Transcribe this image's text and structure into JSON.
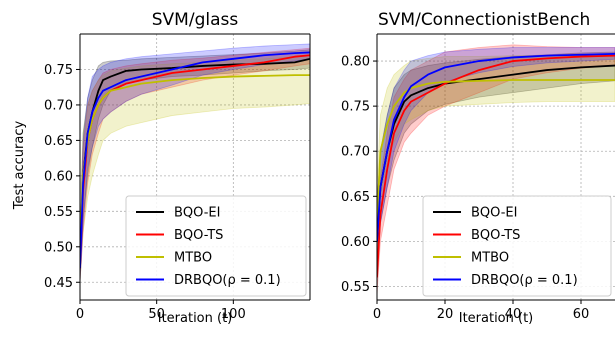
{
  "figure": {
    "ylabel_shared": "Test accuracy"
  },
  "colors": {
    "BQO-EI": "#000000",
    "BQO-TS": "#ff0000",
    "MTBO": "#bfbf00",
    "DRBQO": "#0000ff",
    "grid": "#b0b0b0"
  },
  "chart_data": [
    {
      "type": "line",
      "title": "SVM/glass",
      "xlabel": "Iteration (t)",
      "ylabel": "Test accuracy",
      "xlim": [
        0,
        150
      ],
      "ylim": [
        0.425,
        0.8
      ],
      "xticks": [
        0,
        50,
        100
      ],
      "yticks": [
        0.45,
        0.5,
        0.55,
        0.6,
        0.65,
        0.7,
        0.75
      ],
      "ytick_labels": [
        "0.45",
        "0.50",
        "0.55",
        "0.60",
        "0.65",
        "0.70",
        "0.75"
      ],
      "grid": true,
      "legend_position": "lower-right",
      "series": [
        {
          "name": "BQO-EI",
          "color_key": "BQO-EI",
          "x": [
            0,
            2,
            5,
            8,
            12,
            15,
            20,
            30,
            40,
            60,
            80,
            100,
            120,
            140,
            150
          ],
          "y": [
            0.47,
            0.6,
            0.66,
            0.69,
            0.72,
            0.735,
            0.74,
            0.748,
            0.75,
            0.752,
            0.755,
            0.757,
            0.758,
            0.76,
            0.765
          ],
          "lower": [
            0.45,
            0.54,
            0.6,
            0.64,
            0.68,
            0.7,
            0.72,
            0.73,
            0.735,
            0.74,
            0.742,
            0.745,
            0.748,
            0.75,
            0.752
          ],
          "upper": [
            0.5,
            0.66,
            0.71,
            0.735,
            0.755,
            0.76,
            0.762,
            0.763,
            0.765,
            0.767,
            0.769,
            0.771,
            0.773,
            0.776,
            0.778
          ]
        },
        {
          "name": "BQO-TS",
          "color_key": "BQO-TS",
          "x": [
            0,
            2,
            5,
            8,
            12,
            15,
            20,
            30,
            40,
            60,
            80,
            100,
            120,
            140,
            150
          ],
          "y": [
            0.47,
            0.58,
            0.65,
            0.68,
            0.7,
            0.71,
            0.72,
            0.73,
            0.735,
            0.745,
            0.75,
            0.755,
            0.76,
            0.768,
            0.77
          ],
          "lower": [
            0.45,
            0.52,
            0.59,
            0.63,
            0.66,
            0.68,
            0.69,
            0.705,
            0.715,
            0.725,
            0.735,
            0.742,
            0.748,
            0.755,
            0.758
          ],
          "upper": [
            0.5,
            0.64,
            0.7,
            0.72,
            0.735,
            0.745,
            0.75,
            0.755,
            0.758,
            0.763,
            0.766,
            0.77,
            0.774,
            0.778,
            0.78
          ]
        },
        {
          "name": "MTBO",
          "color_key": "MTBO",
          "x": [
            0,
            2,
            5,
            8,
            12,
            15,
            20,
            30,
            40,
            60,
            80,
            100,
            120,
            140,
            150
          ],
          "y": [
            0.5,
            0.6,
            0.65,
            0.68,
            0.7,
            0.71,
            0.72,
            0.725,
            0.73,
            0.735,
            0.738,
            0.74,
            0.741,
            0.742,
            0.742
          ],
          "lower": [
            0.45,
            0.52,
            0.57,
            0.6,
            0.63,
            0.65,
            0.66,
            0.67,
            0.675,
            0.685,
            0.69,
            0.695,
            0.697,
            0.7,
            0.702
          ],
          "upper": [
            0.56,
            0.66,
            0.7,
            0.72,
            0.735,
            0.742,
            0.748,
            0.752,
            0.755,
            0.758,
            0.76,
            0.763,
            0.765,
            0.768,
            0.77
          ]
        },
        {
          "name": "DRBQO(ρ = 0.1)",
          "color_key": "DRBQO",
          "x": [
            0,
            2,
            5,
            8,
            12,
            15,
            20,
            30,
            40,
            60,
            80,
            100,
            120,
            140,
            150
          ],
          "y": [
            0.47,
            0.59,
            0.66,
            0.69,
            0.71,
            0.72,
            0.725,
            0.735,
            0.74,
            0.75,
            0.76,
            0.765,
            0.77,
            0.773,
            0.774
          ],
          "lower": [
            0.45,
            0.53,
            0.61,
            0.64,
            0.67,
            0.68,
            0.69,
            0.705,
            0.715,
            0.728,
            0.742,
            0.75,
            0.757,
            0.762,
            0.765
          ],
          "upper": [
            0.5,
            0.65,
            0.71,
            0.74,
            0.75,
            0.755,
            0.76,
            0.765,
            0.768,
            0.772,
            0.776,
            0.78,
            0.783,
            0.785,
            0.786
          ]
        }
      ]
    },
    {
      "type": "line",
      "title": "SVM/ConnectionistBench",
      "xlabel": "Iteration (t)",
      "ylabel": "",
      "xlim": [
        0,
        70
      ],
      "ylim": [
        0.535,
        0.83
      ],
      "xticks": [
        0,
        20,
        40,
        60
      ],
      "yticks": [
        0.55,
        0.6,
        0.65,
        0.7,
        0.75,
        0.8
      ],
      "ytick_labels": [
        "0.55",
        "0.60",
        "0.65",
        "0.70",
        "0.75",
        "0.80"
      ],
      "grid": true,
      "legend_position": "lower-right",
      "series": [
        {
          "name": "BQO-EI",
          "color_key": "BQO-EI",
          "x": [
            0,
            1,
            3,
            5,
            8,
            10,
            15,
            20,
            30,
            40,
            50,
            60,
            70
          ],
          "y": [
            0.6,
            0.66,
            0.7,
            0.73,
            0.755,
            0.762,
            0.77,
            0.775,
            0.78,
            0.785,
            0.79,
            0.793,
            0.795
          ],
          "lower": [
            0.57,
            0.62,
            0.66,
            0.69,
            0.72,
            0.73,
            0.745,
            0.752,
            0.76,
            0.765,
            0.77,
            0.775,
            0.778
          ],
          "upper": [
            0.64,
            0.7,
            0.74,
            0.77,
            0.785,
            0.79,
            0.795,
            0.798,
            0.802,
            0.805,
            0.807,
            0.809,
            0.81
          ]
        },
        {
          "name": "BQO-TS",
          "color_key": "BQO-TS",
          "x": [
            0,
            1,
            3,
            5,
            8,
            10,
            15,
            20,
            30,
            40,
            50,
            60,
            70
          ],
          "y": [
            0.56,
            0.63,
            0.68,
            0.72,
            0.745,
            0.755,
            0.765,
            0.775,
            0.79,
            0.8,
            0.803,
            0.805,
            0.806
          ],
          "lower": [
            0.54,
            0.6,
            0.64,
            0.68,
            0.71,
            0.72,
            0.74,
            0.75,
            0.765,
            0.78,
            0.787,
            0.792,
            0.795
          ],
          "upper": [
            0.59,
            0.67,
            0.72,
            0.76,
            0.78,
            0.79,
            0.8,
            0.81,
            0.815,
            0.818,
            0.816,
            0.815,
            0.815
          ]
        },
        {
          "name": "MTBO",
          "color_key": "MTBO",
          "x": [
            0,
            1,
            3,
            5,
            8,
            10,
            15,
            20,
            30,
            40,
            50,
            60,
            70
          ],
          "y": [
            0.62,
            0.7,
            0.73,
            0.75,
            0.765,
            0.77,
            0.775,
            0.777,
            0.778,
            0.779,
            0.779,
            0.779,
            0.779
          ],
          "lower": [
            0.58,
            0.65,
            0.69,
            0.71,
            0.73,
            0.735,
            0.745,
            0.75,
            0.752,
            0.754,
            0.755,
            0.755,
            0.755
          ],
          "upper": [
            0.66,
            0.74,
            0.77,
            0.785,
            0.795,
            0.8,
            0.803,
            0.805,
            0.805,
            0.806,
            0.806,
            0.806,
            0.806
          ]
        },
        {
          "name": "DRBQO(ρ = 0.1)",
          "color_key": "DRBQO",
          "x": [
            0,
            1,
            3,
            5,
            8,
            10,
            15,
            20,
            30,
            40,
            50,
            60,
            70
          ],
          "y": [
            0.6,
            0.66,
            0.7,
            0.735,
            0.76,
            0.772,
            0.785,
            0.793,
            0.8,
            0.804,
            0.806,
            0.807,
            0.808
          ],
          "lower": [
            0.57,
            0.62,
            0.66,
            0.7,
            0.73,
            0.745,
            0.765,
            0.777,
            0.787,
            0.794,
            0.798,
            0.8,
            0.802
          ],
          "upper": [
            0.64,
            0.7,
            0.74,
            0.77,
            0.79,
            0.8,
            0.806,
            0.81,
            0.813,
            0.815,
            0.815,
            0.815,
            0.815
          ]
        }
      ]
    }
  ]
}
